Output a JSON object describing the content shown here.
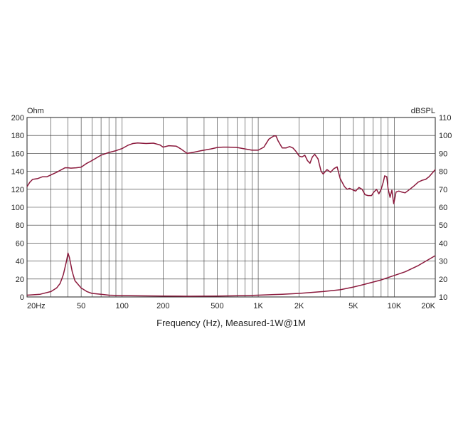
{
  "chart_data": {
    "type": "line",
    "title": "",
    "xlabel": "Frequency (Hz), Measured-1W@1M",
    "x_scale": "log",
    "xlim": [
      20,
      20000
    ],
    "x_ticks": [
      {
        "value": 20,
        "label": "20Hz"
      },
      {
        "value": 50,
        "label": "50"
      },
      {
        "value": 100,
        "label": "100"
      },
      {
        "value": 200,
        "label": "200"
      },
      {
        "value": 500,
        "label": "500"
      },
      {
        "value": 1000,
        "label": "1K"
      },
      {
        "value": 2000,
        "label": "2K"
      },
      {
        "value": 5000,
        "label": "5K"
      },
      {
        "value": 10000,
        "label": "10K"
      },
      {
        "value": 20000,
        "label": "20K"
      }
    ],
    "left_axis": {
      "unit": "Ohm",
      "ylim": [
        0,
        200
      ],
      "ticks": [
        0,
        20,
        40,
        60,
        80,
        100,
        120,
        140,
        160,
        180,
        200
      ]
    },
    "right_axis": {
      "unit": "dBSPL",
      "ylim": [
        10,
        110
      ],
      "ticks": [
        10,
        20,
        30,
        40,
        50,
        60,
        70,
        80,
        90,
        100,
        110
      ]
    },
    "grid": true,
    "line_color": "#8b1a3d",
    "series": [
      {
        "axis": "right",
        "points": [
          [
            20,
            71.5
          ],
          [
            21,
            74
          ],
          [
            22,
            75.5
          ],
          [
            24,
            76
          ],
          [
            26,
            77
          ],
          [
            28,
            77
          ],
          [
            30,
            78
          ],
          [
            33,
            79.5
          ],
          [
            36,
            81
          ],
          [
            38,
            82
          ],
          [
            40,
            82
          ],
          [
            42,
            81.8
          ],
          [
            46,
            82
          ],
          [
            50,
            82.3
          ],
          [
            55,
            84.5
          ],
          [
            60,
            86
          ],
          [
            70,
            89
          ],
          [
            80,
            90.5
          ],
          [
            90,
            91.5
          ],
          [
            100,
            92.7
          ],
          [
            110,
            94.5
          ],
          [
            120,
            95.5
          ],
          [
            130,
            95.8
          ],
          [
            150,
            95.5
          ],
          [
            170,
            95.7
          ],
          [
            190,
            94.7
          ],
          [
            200,
            93.5
          ],
          [
            220,
            94.3
          ],
          [
            250,
            94
          ],
          [
            270,
            92.5
          ],
          [
            300,
            90
          ],
          [
            330,
            90.5
          ],
          [
            380,
            91.5
          ],
          [
            400,
            91.8
          ],
          [
            450,
            92.5
          ],
          [
            500,
            93.3
          ],
          [
            550,
            93.5
          ],
          [
            600,
            93.5
          ],
          [
            700,
            93.3
          ],
          [
            800,
            92.5
          ],
          [
            900,
            91.8
          ],
          [
            1000,
            91.8
          ],
          [
            1100,
            93.5
          ],
          [
            1200,
            98
          ],
          [
            1300,
            99.7
          ],
          [
            1350,
            99.8
          ],
          [
            1400,
            97
          ],
          [
            1500,
            93
          ],
          [
            1600,
            93
          ],
          [
            1700,
            93.8
          ],
          [
            1800,
            93
          ],
          [
            1900,
            91
          ],
          [
            2000,
            88.5
          ],
          [
            2100,
            88
          ],
          [
            2200,
            89
          ],
          [
            2300,
            86
          ],
          [
            2400,
            84.5
          ],
          [
            2500,
            88
          ],
          [
            2600,
            89.5
          ],
          [
            2750,
            87
          ],
          [
            2900,
            80
          ],
          [
            3000,
            78.5
          ],
          [
            3200,
            81
          ],
          [
            3400,
            79.5
          ],
          [
            3600,
            81.5
          ],
          [
            3800,
            82.5
          ],
          [
            4000,
            76
          ],
          [
            4300,
            71.5
          ],
          [
            4500,
            70
          ],
          [
            4700,
            70.5
          ],
          [
            5000,
            69.5
          ],
          [
            5200,
            69
          ],
          [
            5500,
            71
          ],
          [
            5800,
            70
          ],
          [
            6100,
            67
          ],
          [
            6400,
            66.5
          ],
          [
            6800,
            66.5
          ],
          [
            7000,
            68
          ],
          [
            7400,
            70
          ],
          [
            7700,
            67.5
          ],
          [
            8000,
            70
          ],
          [
            8300,
            74
          ],
          [
            8500,
            77.5
          ],
          [
            8800,
            77
          ],
          [
            9000,
            70.5
          ],
          [
            9300,
            65.5
          ],
          [
            9600,
            69.5
          ],
          [
            9900,
            62
          ],
          [
            10300,
            68.5
          ],
          [
            10800,
            69
          ],
          [
            11300,
            68.5
          ],
          [
            12000,
            68
          ],
          [
            13000,
            70
          ],
          [
            14000,
            72
          ],
          [
            15000,
            74
          ],
          [
            16000,
            75
          ],
          [
            17000,
            75.5
          ],
          [
            18000,
            77
          ],
          [
            19000,
            79
          ],
          [
            20000,
            81
          ]
        ]
      },
      {
        "axis": "left",
        "points": [
          [
            20,
            2
          ],
          [
            25,
            3
          ],
          [
            30,
            6
          ],
          [
            33,
            10
          ],
          [
            35,
            15
          ],
          [
            37,
            25
          ],
          [
            39,
            40
          ],
          [
            40,
            49
          ],
          [
            41,
            44
          ],
          [
            43,
            28
          ],
          [
            45,
            18
          ],
          [
            50,
            10
          ],
          [
            55,
            6
          ],
          [
            60,
            4
          ],
          [
            70,
            3
          ],
          [
            80,
            2
          ],
          [
            100,
            1.5
          ],
          [
            200,
            1
          ],
          [
            300,
            0.8
          ],
          [
            500,
            1
          ],
          [
            800,
            1.5
          ],
          [
            1000,
            2
          ],
          [
            1500,
            3
          ],
          [
            2000,
            4
          ],
          [
            3000,
            6
          ],
          [
            4000,
            8
          ],
          [
            5000,
            11
          ],
          [
            6000,
            14
          ],
          [
            8000,
            19
          ],
          [
            10000,
            24
          ],
          [
            12000,
            28
          ],
          [
            15000,
            35
          ],
          [
            18000,
            42
          ],
          [
            20000,
            46
          ]
        ]
      }
    ]
  }
}
